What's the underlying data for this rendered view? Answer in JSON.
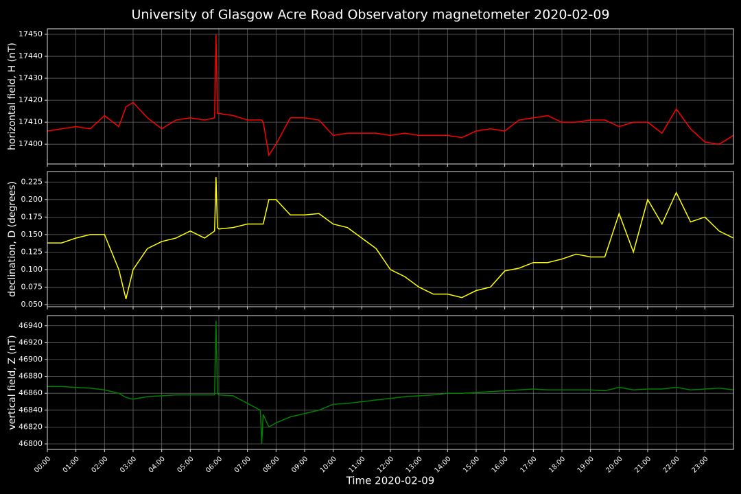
{
  "title": "University of Glasgow Acre Road Observatory magnetometer 2020-02-09",
  "xlabel": "Time 2020-02-09",
  "xlim": [
    0,
    24
  ],
  "xticks": [
    {
      "value": 0,
      "label": "00:00"
    },
    {
      "value": 1,
      "label": "01:00"
    },
    {
      "value": 2,
      "label": "02:00"
    },
    {
      "value": 3,
      "label": "03:00"
    },
    {
      "value": 4,
      "label": "04:00"
    },
    {
      "value": 5,
      "label": "05:00"
    },
    {
      "value": 6,
      "label": "06:00"
    },
    {
      "value": 7,
      "label": "07:00"
    },
    {
      "value": 8,
      "label": "08:00"
    },
    {
      "value": 9,
      "label": "09:00"
    },
    {
      "value": 10,
      "label": "10:00"
    },
    {
      "value": 11,
      "label": "11:00"
    },
    {
      "value": 12,
      "label": "12:00"
    },
    {
      "value": 13,
      "label": "13:00"
    },
    {
      "value": 14,
      "label": "14:00"
    },
    {
      "value": 15,
      "label": "15:00"
    },
    {
      "value": 16,
      "label": "16:00"
    },
    {
      "value": 17,
      "label": "17:00"
    },
    {
      "value": 18,
      "label": "18:00"
    },
    {
      "value": 19,
      "label": "19:00"
    },
    {
      "value": 20,
      "label": "20:00"
    },
    {
      "value": 21,
      "label": "21:00"
    },
    {
      "value": 22,
      "label": "22:00"
    },
    {
      "value": 23,
      "label": "23:00"
    }
  ],
  "x": [
    0,
    0.5,
    1,
    1.5,
    2,
    2.5,
    2.75,
    3,
    3.5,
    4,
    4.5,
    5,
    5.5,
    5.85,
    5.9,
    5.95,
    6,
    6.5,
    7,
    7.45,
    7.5,
    7.55,
    7.75,
    8,
    8.5,
    9,
    9.5,
    10,
    10.5,
    11,
    11.5,
    12,
    12.5,
    13,
    13.5,
    14,
    14.5,
    15,
    15.5,
    16,
    16.5,
    17,
    17.5,
    18,
    18.5,
    19,
    19.5,
    20,
    20.5,
    21,
    21.5,
    22,
    22.5,
    23,
    23.5,
    24
  ],
  "chart_data": [
    {
      "type": "line",
      "ylabel": "horizontal field, H (nT)",
      "color": "#ff0000",
      "grid": true,
      "ylim": [
        17391,
        17452.5
      ],
      "yticks": [
        17400,
        17410,
        17420,
        17430,
        17440,
        17450
      ],
      "values": [
        17406,
        17407,
        17408,
        17407,
        17413,
        17408,
        17417,
        17419,
        17412,
        17407,
        17411,
        17412,
        17411,
        17412,
        17450,
        17414,
        17414,
        17413,
        17411,
        17411,
        17411,
        17410,
        17395,
        17400,
        17412,
        17412,
        17411,
        17404,
        17405,
        17405,
        17405,
        17404,
        17405,
        17404,
        17404,
        17404,
        17403,
        17406,
        17407,
        17406,
        17411,
        17412,
        17413,
        17410,
        17410,
        17411,
        17411,
        17408,
        17410,
        17410,
        17405,
        17416,
        17407,
        17401,
        17400,
        17404
      ]
    },
    {
      "type": "line",
      "ylabel": "declination, D (degrees)",
      "color": "#ffff00",
      "grid": true,
      "ylim": [
        0.047,
        0.24
      ],
      "yticks": [
        {
          "value": 0.05,
          "label": "0.050"
        },
        {
          "value": 0.075,
          "label": "0.075"
        },
        {
          "value": 0.1,
          "label": "0.100"
        },
        {
          "value": 0.125,
          "label": "0.125"
        },
        {
          "value": 0.15,
          "label": "0.150"
        },
        {
          "value": 0.175,
          "label": "0.175"
        },
        {
          "value": 0.2,
          "label": "0.200"
        },
        {
          "value": 0.225,
          "label": "0.225"
        }
      ],
      "values": [
        0.138,
        0.138,
        0.145,
        0.15,
        0.15,
        0.1,
        0.058,
        0.1,
        0.13,
        0.14,
        0.145,
        0.155,
        0.145,
        0.155,
        0.232,
        0.16,
        0.158,
        0.16,
        0.165,
        0.165,
        0.165,
        0.165,
        0.2,
        0.2,
        0.178,
        0.178,
        0.18,
        0.165,
        0.16,
        0.145,
        0.13,
        0.1,
        0.09,
        0.075,
        0.065,
        0.065,
        0.06,
        0.07,
        0.075,
        0.098,
        0.102,
        0.11,
        0.11,
        0.115,
        0.122,
        0.118,
        0.118,
        0.18,
        0.125,
        0.2,
        0.165,
        0.21,
        0.168,
        0.175,
        0.155,
        0.145
      ]
    },
    {
      "type": "line",
      "ylabel": "vertical field, Z (nT)",
      "color": "#008000",
      "grid": true,
      "ylim": [
        46793.5,
        46952
      ],
      "yticks": [
        46800,
        46820,
        46840,
        46860,
        46880,
        46900,
        46920,
        46940
      ],
      "values": [
        46868,
        46868,
        46867,
        46866,
        46864,
        46860,
        46855,
        46853,
        46856,
        46857,
        46858,
        46858,
        46858,
        46858,
        46946,
        46860,
        46858,
        46857,
        46848,
        46840,
        46800,
        46835,
        46820,
        46825,
        46832,
        46836,
        46840,
        46847,
        46848,
        46850,
        46852,
        46854,
        46856,
        46857,
        46858,
        46860,
        46860,
        46861,
        46862,
        46863,
        46864,
        46865,
        46864,
        46864,
        46864,
        46864,
        46863,
        46867,
        46864,
        46865,
        46865,
        46867,
        46864,
        46865,
        46866,
        46864
      ]
    }
  ]
}
